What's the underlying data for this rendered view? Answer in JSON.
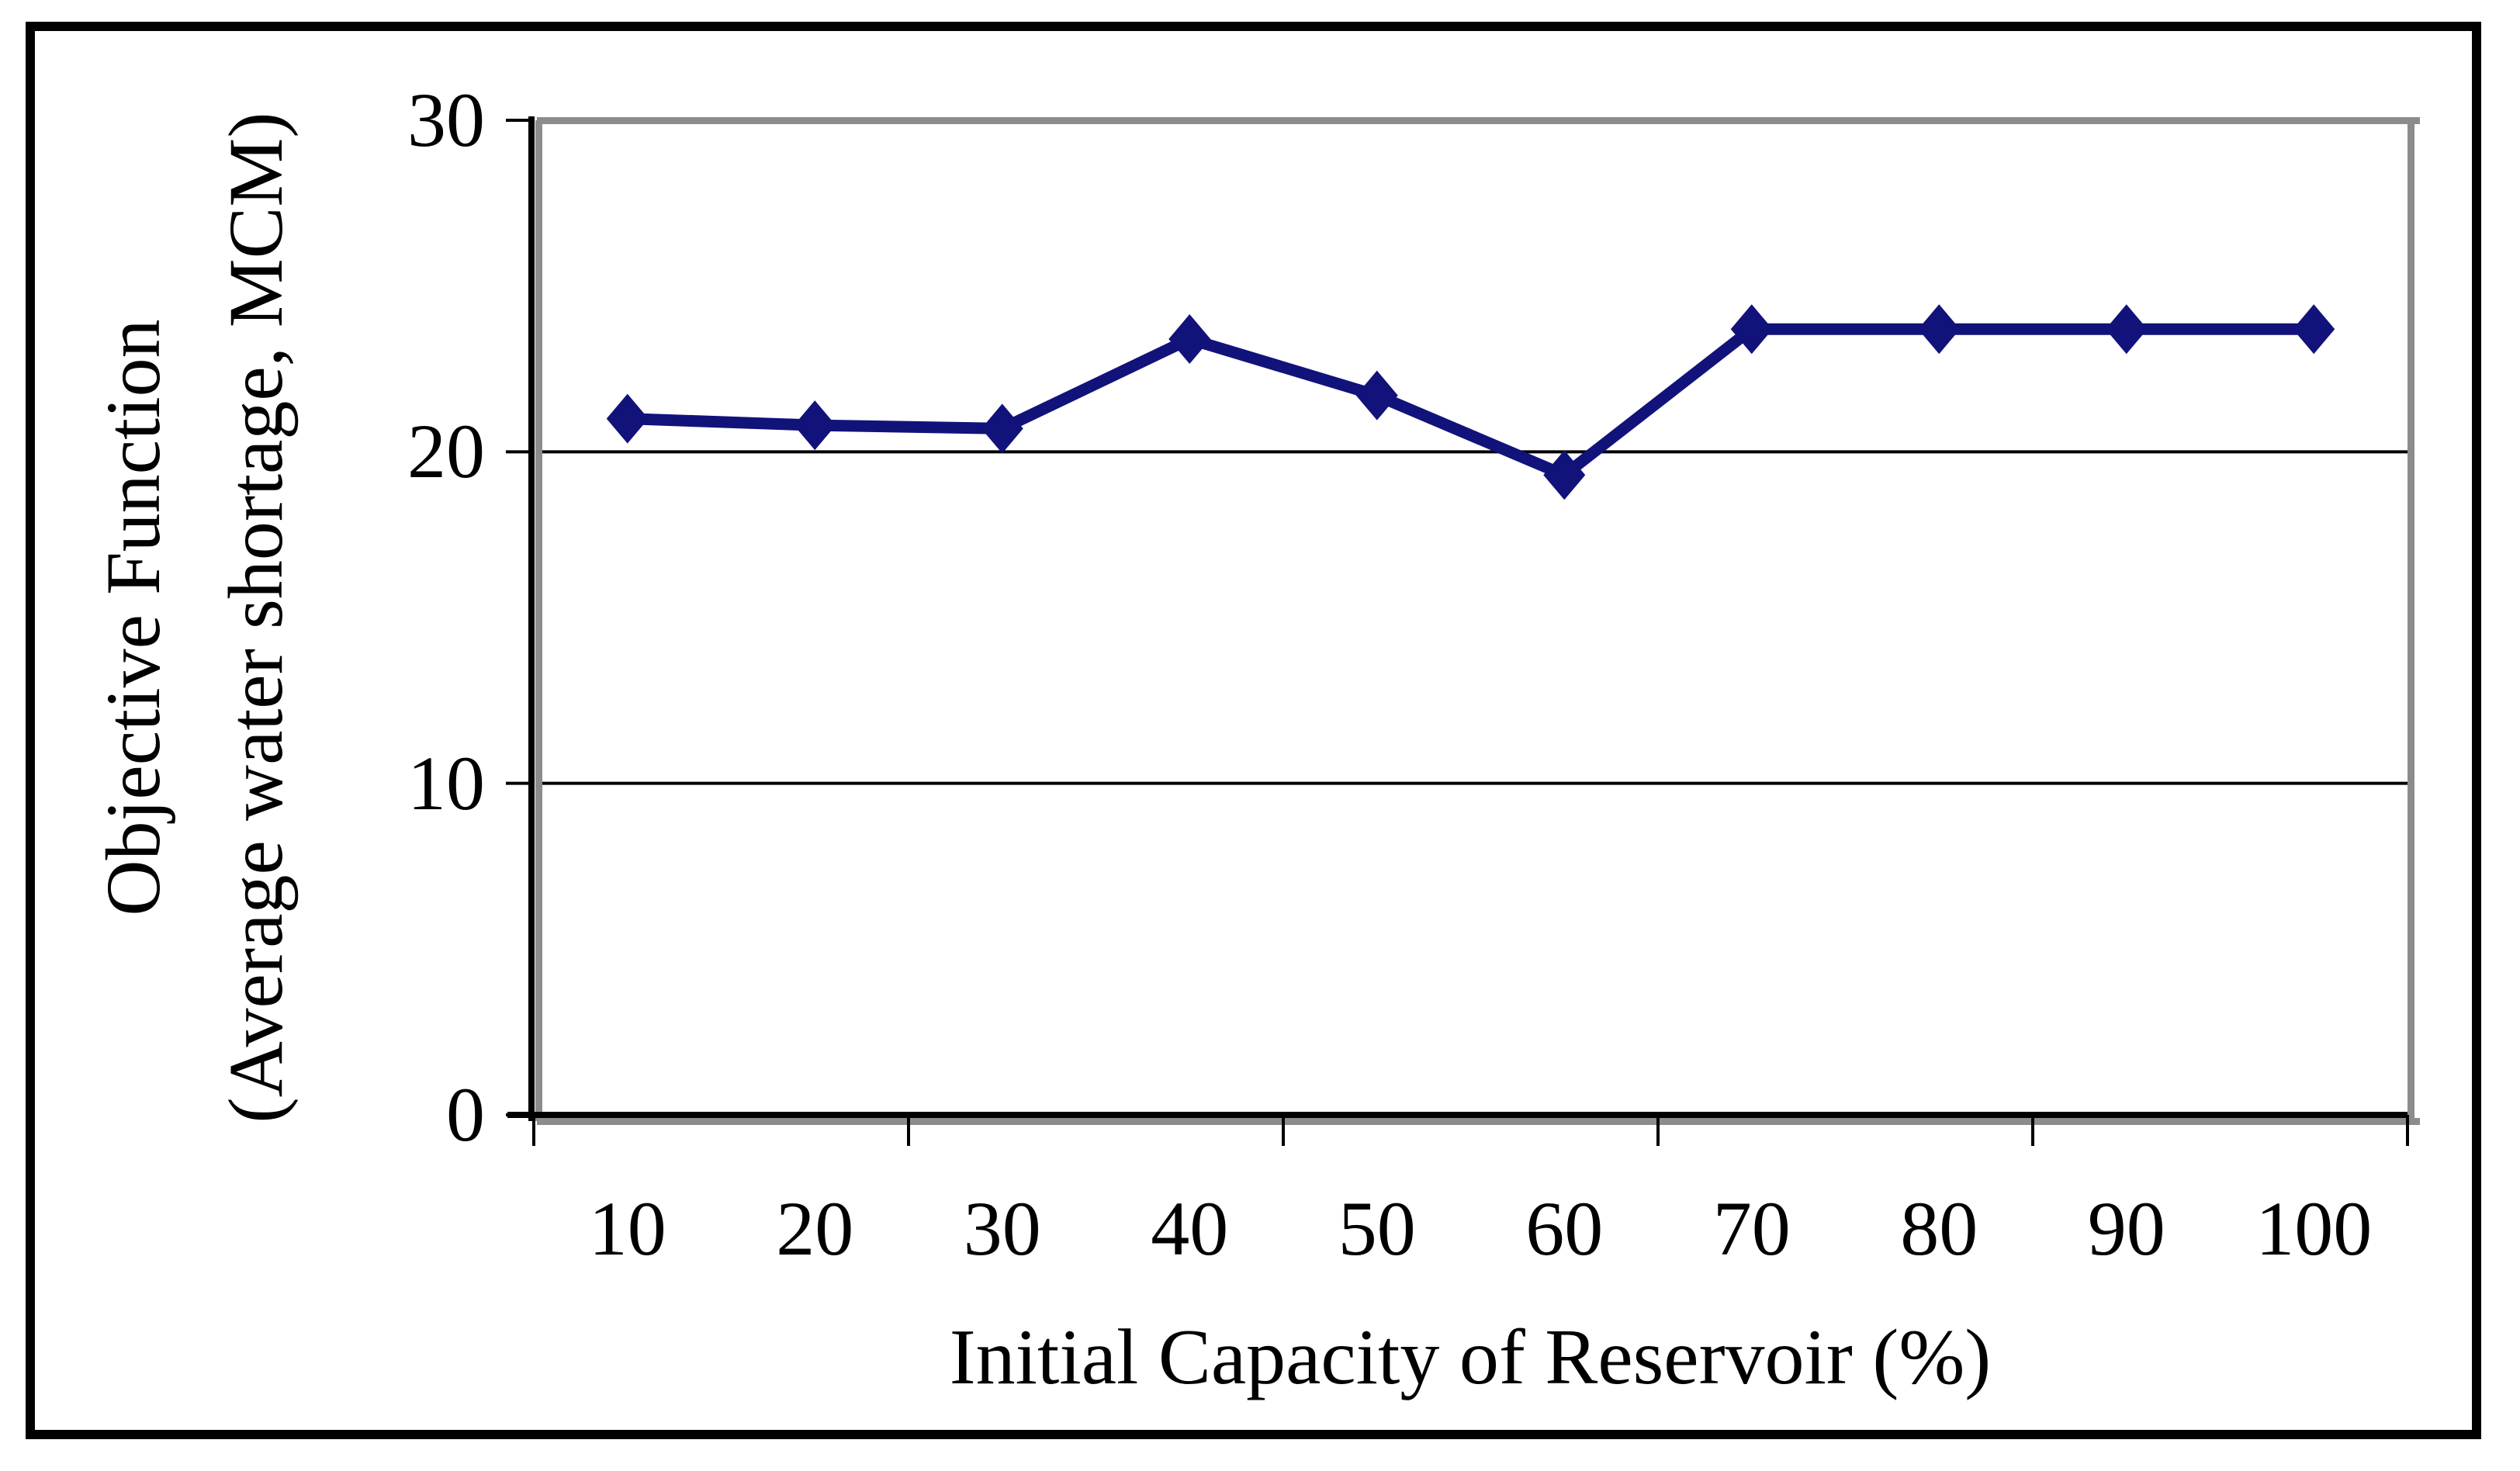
{
  "figure": {
    "background": "#ffffff",
    "border_color": "#000000"
  },
  "chart_data": {
    "type": "line",
    "title": "",
    "xlabel": "Initial Capacity of Reservoir (%)",
    "ylabel_line1": "Objective Function",
    "ylabel_line2": "(Average water shortage, MCM)",
    "categories": [
      10,
      20,
      30,
      40,
      50,
      60,
      70,
      80,
      90,
      100
    ],
    "x_tick_labels": [
      "10",
      "20",
      "30",
      "40",
      "50",
      "60",
      "70",
      "80",
      "90",
      "100"
    ],
    "series": [
      {
        "values": [
          21,
          20.8,
          20.7,
          23.4,
          21.7,
          19.3,
          23.7,
          23.7,
          23.7,
          23.7
        ],
        "color": "#12127b",
        "marker": "diamond"
      }
    ],
    "y_ticks": [
      30,
      20,
      10,
      0
    ],
    "ylim": [
      0,
      30
    ],
    "gridlines_at": [
      10,
      20
    ],
    "legend": "none",
    "grid": "horizontal",
    "axis_color": "#000000",
    "axis_shadow_color": "#8c8c8c",
    "gridline_color": "#000000",
    "tick_color": "#000000"
  }
}
